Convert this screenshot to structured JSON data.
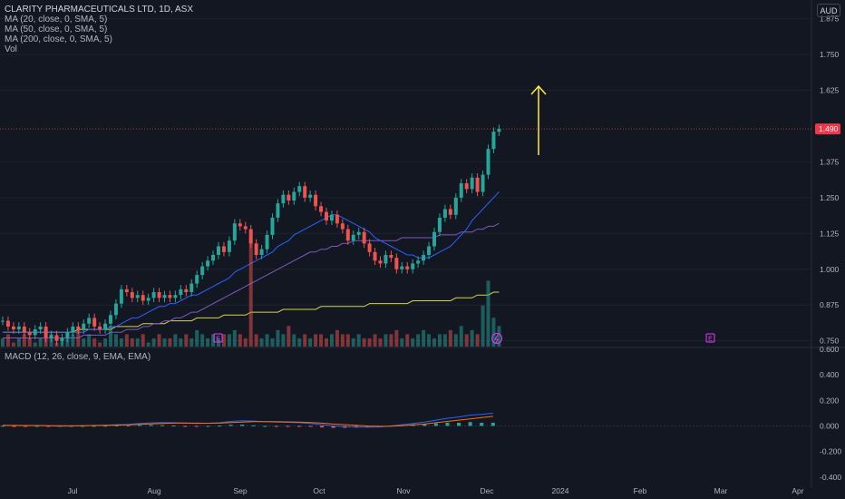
{
  "legend": {
    "title": "CLARITY PHARMACEUTICALS LTD, 1D, ASX",
    "ma20": "MA (20, close, 0, SMA, 5)",
    "ma50": "MA (50, close, 0, SMA, 5)",
    "ma200": "MA (200, close, 0, SMA, 5)",
    "vol": "Vol",
    "macd": "MACD (12, 26, close, 9, EMA, EMA)"
  },
  "currency": "AUD",
  "price_label": "1.490",
  "event_badges": [
    "E",
    "E"
  ],
  "colors": {
    "up": "#26a69a",
    "down": "#ef5350",
    "ma20": "#2962ff",
    "ma50": "#7e57c2",
    "ma200": "#d4d449",
    "arrow": "#ffeb3b",
    "bg": "#131722"
  },
  "chart_data": {
    "type": "candlestick",
    "symbol": "CLARITY PHARMACEUTICALS LTD",
    "interval": "1D",
    "exchange": "ASX",
    "y_ticks": [
      "1.875",
      "1.750",
      "1.625",
      "1.375",
      "1.250",
      "1.125",
      "1.000",
      "0.875",
      "0.750"
    ],
    "ylim": [
      0.73,
      1.94
    ],
    "macd_ticks": [
      "0.600",
      "0.400",
      "0.200",
      "0.000",
      "-0.200",
      "-0.400"
    ],
    "macd_ylim": [
      -0.43,
      0.6
    ],
    "x_ticks": [
      "Jul",
      "Aug",
      "Sep",
      "Oct",
      "Nov",
      "Dec",
      "2024",
      "Feb",
      "Mar",
      "Apr"
    ],
    "last_price": 1.49,
    "closes": [
      0.82,
      0.8,
      0.79,
      0.8,
      0.78,
      0.77,
      0.79,
      0.8,
      0.76,
      0.77,
      0.75,
      0.76,
      0.78,
      0.8,
      0.79,
      0.81,
      0.83,
      0.8,
      0.79,
      0.81,
      0.84,
      0.88,
      0.93,
      0.92,
      0.9,
      0.91,
      0.89,
      0.9,
      0.92,
      0.9,
      0.91,
      0.9,
      0.91,
      0.93,
      0.92,
      0.95,
      0.98,
      1.01,
      1.03,
      1.05,
      1.08,
      1.06,
      1.1,
      1.16,
      1.15,
      1.14,
      1.09,
      1.05,
      1.07,
      1.12,
      1.18,
      1.23,
      1.26,
      1.24,
      1.27,
      1.29,
      1.25,
      1.26,
      1.22,
      1.2,
      1.17,
      1.19,
      1.16,
      1.14,
      1.1,
      1.12,
      1.13,
      1.09,
      1.06,
      1.03,
      1.02,
      1.05,
      1.04,
      1.0,
      1.01,
      1.0,
      1.02,
      1.03,
      1.05,
      1.08,
      1.13,
      1.18,
      1.21,
      1.19,
      1.25,
      1.3,
      1.28,
      1.32,
      1.27,
      1.33,
      1.42,
      1.48,
      1.49
    ],
    "ma20": [
      0.78,
      0.78,
      0.78,
      0.78,
      0.78,
      0.78,
      0.78,
      0.78,
      0.78,
      0.78,
      0.78,
      0.78,
      0.78,
      0.78,
      0.78,
      0.78,
      0.79,
      0.79,
      0.79,
      0.79,
      0.8,
      0.8,
      0.81,
      0.82,
      0.83,
      0.83,
      0.84,
      0.85,
      0.86,
      0.87,
      0.87,
      0.88,
      0.88,
      0.89,
      0.9,
      0.91,
      0.91,
      0.92,
      0.93,
      0.94,
      0.95,
      0.96,
      0.97,
      0.99,
      1.0,
      1.01,
      1.02,
      1.03,
      1.04,
      1.05,
      1.06,
      1.08,
      1.09,
      1.1,
      1.12,
      1.13,
      1.14,
      1.15,
      1.16,
      1.17,
      1.18,
      1.19,
      1.19,
      1.18,
      1.17,
      1.16,
      1.15,
      1.14,
      1.13,
      1.11,
      1.1,
      1.09,
      1.08,
      1.07,
      1.06,
      1.05,
      1.05,
      1.04,
      1.04,
      1.04,
      1.05,
      1.06,
      1.07,
      1.08,
      1.1,
      1.12,
      1.14,
      1.17,
      1.19,
      1.21,
      1.23,
      1.25,
      1.27
    ],
    "ma50": [
      0.76,
      0.76,
      0.76,
      0.76,
      0.76,
      0.76,
      0.76,
      0.76,
      0.76,
      0.76,
      0.76,
      0.76,
      0.76,
      0.76,
      0.76,
      0.77,
      0.77,
      0.77,
      0.77,
      0.77,
      0.78,
      0.78,
      0.78,
      0.79,
      0.79,
      0.79,
      0.8,
      0.8,
      0.81,
      0.81,
      0.82,
      0.82,
      0.83,
      0.83,
      0.84,
      0.85,
      0.85,
      0.86,
      0.87,
      0.88,
      0.89,
      0.9,
      0.91,
      0.92,
      0.93,
      0.94,
      0.95,
      0.96,
      0.97,
      0.98,
      0.99,
      1.0,
      1.01,
      1.02,
      1.03,
      1.04,
      1.05,
      1.06,
      1.06,
      1.07,
      1.07,
      1.08,
      1.08,
      1.09,
      1.09,
      1.1,
      1.1,
      1.1,
      1.1,
      1.1,
      1.1,
      1.1,
      1.1,
      1.1,
      1.11,
      1.11,
      1.11,
      1.11,
      1.11,
      1.11,
      1.11,
      1.12,
      1.12,
      1.12,
      1.12,
      1.13,
      1.13,
      1.13,
      1.14,
      1.14,
      1.15,
      1.15,
      1.16
    ],
    "ma200": [
      0.78,
      0.78,
      0.78,
      0.78,
      0.78,
      0.78,
      0.78,
      0.78,
      0.78,
      0.78,
      0.78,
      0.78,
      0.78,
      0.78,
      0.79,
      0.79,
      0.79,
      0.79,
      0.79,
      0.79,
      0.79,
      0.8,
      0.8,
      0.8,
      0.8,
      0.8,
      0.81,
      0.81,
      0.81,
      0.81,
      0.81,
      0.82,
      0.82,
      0.82,
      0.82,
      0.82,
      0.83,
      0.83,
      0.83,
      0.83,
      0.83,
      0.84,
      0.84,
      0.84,
      0.84,
      0.84,
      0.85,
      0.85,
      0.85,
      0.85,
      0.85,
      0.85,
      0.86,
      0.86,
      0.86,
      0.86,
      0.86,
      0.86,
      0.86,
      0.87,
      0.87,
      0.87,
      0.87,
      0.87,
      0.87,
      0.87,
      0.87,
      0.87,
      0.88,
      0.88,
      0.88,
      0.88,
      0.88,
      0.88,
      0.88,
      0.88,
      0.89,
      0.89,
      0.89,
      0.89,
      0.89,
      0.89,
      0.89,
      0.89,
      0.9,
      0.9,
      0.9,
      0.9,
      0.91,
      0.91,
      0.91,
      0.92,
      0.92
    ],
    "volume": [
      2,
      3,
      1,
      2,
      3,
      2,
      1,
      2,
      2,
      3,
      1,
      2,
      2,
      3,
      4,
      2,
      3,
      2,
      1,
      2,
      5,
      3,
      2,
      3,
      2,
      2,
      3,
      1,
      2,
      3,
      2,
      2,
      3,
      2,
      3,
      2,
      4,
      3,
      2,
      3,
      2,
      3,
      3,
      4,
      3,
      2,
      26,
      3,
      2,
      3,
      2,
      4,
      3,
      5,
      3,
      2,
      3,
      2,
      3,
      3,
      2,
      3,
      4,
      3,
      3,
      2,
      3,
      2,
      2,
      3,
      2,
      3,
      3,
      4,
      2,
      3,
      2,
      3,
      4,
      3,
      2,
      3,
      3,
      4,
      3,
      5,
      3,
      4,
      3,
      10,
      16,
      7,
      5
    ],
    "macd": [
      0.005,
      0.003,
      0.002,
      0.003,
      0.001,
      -0.002,
      -0.001,
      0.002,
      0.004,
      0.006,
      0.01,
      0.012,
      0.02,
      0.024,
      0.026,
      0.025,
      0.022,
      0.02,
      0.021,
      0.025,
      0.035,
      0.04,
      0.038,
      0.034,
      0.03,
      0.028,
      0.025,
      0.02,
      0.01,
      0.0,
      -0.005,
      -0.008,
      -0.01,
      -0.008,
      0.0,
      0.01,
      0.02,
      0.03,
      0.045,
      0.06,
      0.07,
      0.085,
      0.09,
      0.1
    ],
    "macd_signal": [
      0.004,
      0.004,
      0.003,
      0.003,
      0.002,
      0.001,
      0.001,
      0.002,
      0.003,
      0.004,
      0.006,
      0.008,
      0.012,
      0.016,
      0.02,
      0.022,
      0.023,
      0.022,
      0.021,
      0.022,
      0.026,
      0.03,
      0.033,
      0.034,
      0.033,
      0.032,
      0.03,
      0.027,
      0.022,
      0.015,
      0.01,
      0.005,
      0.0,
      -0.003,
      -0.002,
      0.002,
      0.008,
      0.015,
      0.025,
      0.035,
      0.045,
      0.055,
      0.065,
      0.075
    ]
  }
}
